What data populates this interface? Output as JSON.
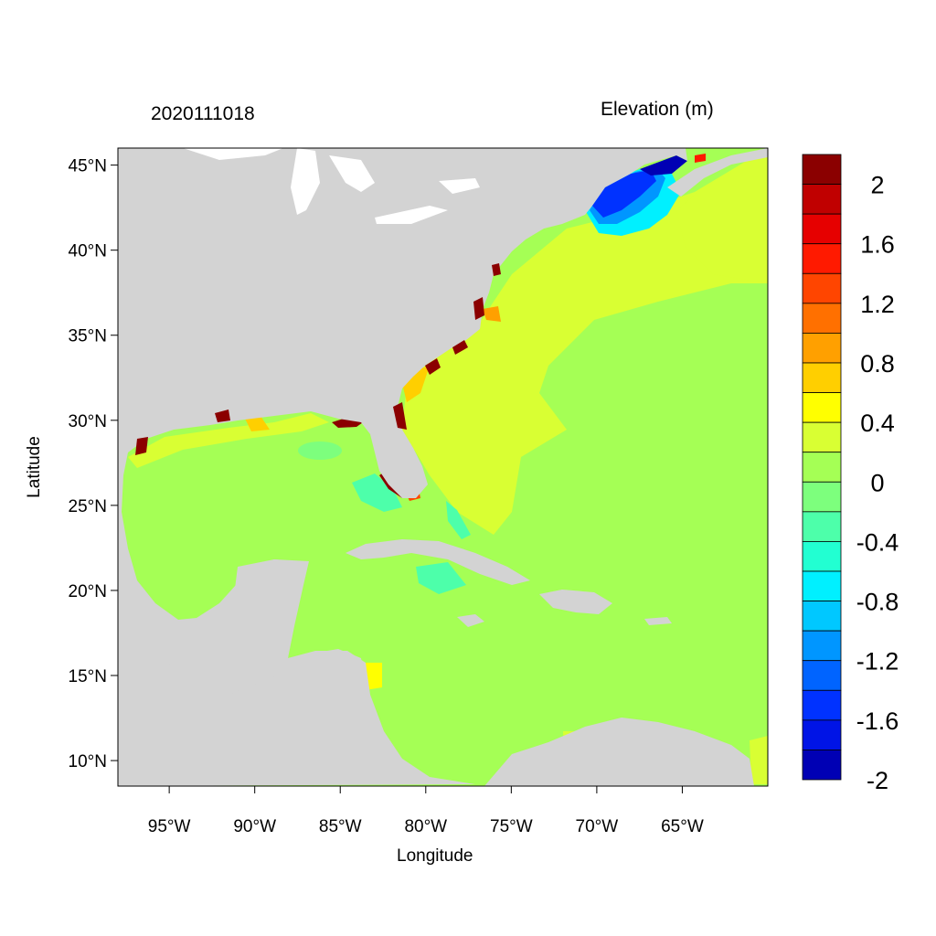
{
  "title_left": "2020111018",
  "title_right": "Elevation (m)",
  "xlabel": "Longitude",
  "ylabel": "Latitude",
  "map": {
    "lon_range": [
      -98,
      -60
    ],
    "lat_range": [
      8.5,
      46
    ],
    "x_ticks": [
      {
        "lon": -95,
        "label": "95°W"
      },
      {
        "lon": -90,
        "label": "90°W"
      },
      {
        "lon": -85,
        "label": "85°W"
      },
      {
        "lon": -80,
        "label": "80°W"
      },
      {
        "lon": -75,
        "label": "75°W"
      },
      {
        "lon": -70,
        "label": "70°W"
      },
      {
        "lon": -65,
        "label": "65°W"
      }
    ],
    "y_ticks": [
      {
        "lat": 45,
        "label": "45°N"
      },
      {
        "lat": 40,
        "label": "40°N"
      },
      {
        "lat": 35,
        "label": "35°N"
      },
      {
        "lat": 30,
        "label": "30°N"
      },
      {
        "lat": 25,
        "label": "25°N"
      },
      {
        "lat": 20,
        "label": "20°N"
      },
      {
        "lat": 15,
        "label": "15°N"
      },
      {
        "lat": 10,
        "label": "10°N"
      }
    ],
    "land_color": "#d3d3d3",
    "ocean_base_color": "#a5ff55"
  },
  "colorbar": {
    "levels_top_to_bottom": [
      {
        "color": "#8b0000"
      },
      {
        "color": "#c00000"
      },
      {
        "color": "#e60000"
      },
      {
        "color": "#ff1a00"
      },
      {
        "color": "#ff4500"
      },
      {
        "color": "#ff7000"
      },
      {
        "color": "#ffa000"
      },
      {
        "color": "#ffcf00"
      },
      {
        "color": "#ffff00"
      },
      {
        "color": "#d9ff33"
      },
      {
        "color": "#a5ff55"
      },
      {
        "color": "#7dff7d"
      },
      {
        "color": "#4dffaa"
      },
      {
        "color": "#22ffd2"
      },
      {
        "color": "#00f0ff"
      },
      {
        "color": "#00c8ff"
      },
      {
        "color": "#0096ff"
      },
      {
        "color": "#0064ff"
      },
      {
        "color": "#0032ff"
      },
      {
        "color": "#0014e6"
      },
      {
        "color": "#0000b4"
      }
    ],
    "labels": [
      {
        "text": "2",
        "index": 1
      },
      {
        "text": "1.6",
        "index": 3
      },
      {
        "text": "1.2",
        "index": 5
      },
      {
        "text": "0.8",
        "index": 7
      },
      {
        "text": "0.4",
        "index": 9
      },
      {
        "text": "0",
        "index": 11
      },
      {
        "text": "-0.4",
        "index": 13
      },
      {
        "text": "-0.8",
        "index": 15
      },
      {
        "text": "-1.2",
        "index": 17
      },
      {
        "text": "-1.6",
        "index": 19
      },
      {
        "text": "-2",
        "index": 21
      }
    ]
  }
}
